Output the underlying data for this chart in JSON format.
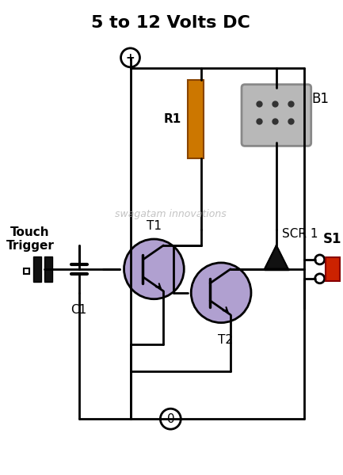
{
  "title": "5 to 12 Volts DC",
  "watermark": "swagatam innovations",
  "bg_color": "#ffffff",
  "line_color": "#000000",
  "title_fontsize": 16,
  "label_T1": "T1",
  "label_T2": "T2",
  "label_R1": "R1",
  "label_B1": "B1",
  "label_C1": "C1",
  "label_SCR1": "SCR 1",
  "label_S1": "S1",
  "label_touch": "Touch\nTrigger",
  "transistor_color": "#b0a0d0",
  "resistor_color": "#cc7700",
  "buzzer_color": "#aaaaaa",
  "switch_color": "#cc2200"
}
